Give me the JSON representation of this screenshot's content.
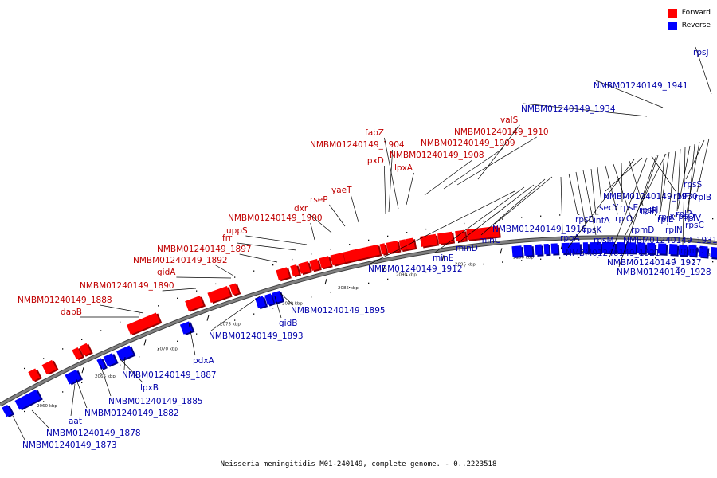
{
  "caption": "Neisseria meningitidis M01-240149, complete genome. - 0..2223518",
  "legend": {
    "forward": {
      "label": "Forward",
      "color": "#ff0000"
    },
    "reverse": {
      "label": "Reverse",
      "color": "#0000ff"
    }
  },
  "colors": {
    "backbone": "#808080",
    "forward_label": "#c00000",
    "reverse_label": "#0000aa"
  },
  "coordinate_ticks": [
    "2060 kbp",
    "2065 kbp",
    "2070 kbp",
    "2075 kbp",
    "2080 kbp",
    "2085 kbp",
    "2090 kbp",
    "2095 kbp",
    "2100 kbp",
    "2105 kbp",
    "2110 kbp",
    "2115 kbp"
  ],
  "forward_labels": [
    "dapB",
    "NMBM01240149_1888",
    "NMBM01240149_1890",
    "gidA",
    "NMBM01240149_1892",
    "NMBM01240149_1897",
    "frr",
    "uppS",
    "NMBM01240149_1900",
    "dxr",
    "rseP",
    "yaeT",
    "lpxD",
    "NMBM01240149_1904",
    "fabZ",
    "lpxA",
    "NMBM01240149_1908",
    "NMBM01240149_1909",
    "NMBM01240149_1910",
    "valS"
  ],
  "reverse_labels": [
    "NMBM01240149_1873",
    "NMBM01240149_1878",
    "aat",
    "NMBM01240149_1882",
    "NMBM01240149_1885",
    "lpxB",
    "NMBM01240149_1887",
    "pdxA",
    "NMBM01240149_1893",
    "gidB",
    "NMBM01240149_1895",
    "NMBM01240149_1912",
    "minE",
    "minD",
    "minC",
    "NMBM01240149_1916",
    "rpoA",
    "rpsD",
    "rpsK",
    "rpsM",
    "infA",
    "secY",
    "rplO",
    "rpmD",
    "rpsE",
    "rplR",
    "NMBM01240149_1921",
    "NMBM01240149_1930",
    "rplF",
    "rpsH",
    "rplE",
    "rplX",
    "rplN",
    "rpsQ",
    "rpmC",
    "rplP",
    "rpsC",
    "rplV",
    "rpsS",
    "rplB",
    "NMBM01240149_1927",
    "NMBM01240149_1928",
    "NMBM01240149_1931",
    "NMBM01240149_1934",
    "NMBM01240149_1941",
    "rpsJ"
  ]
}
